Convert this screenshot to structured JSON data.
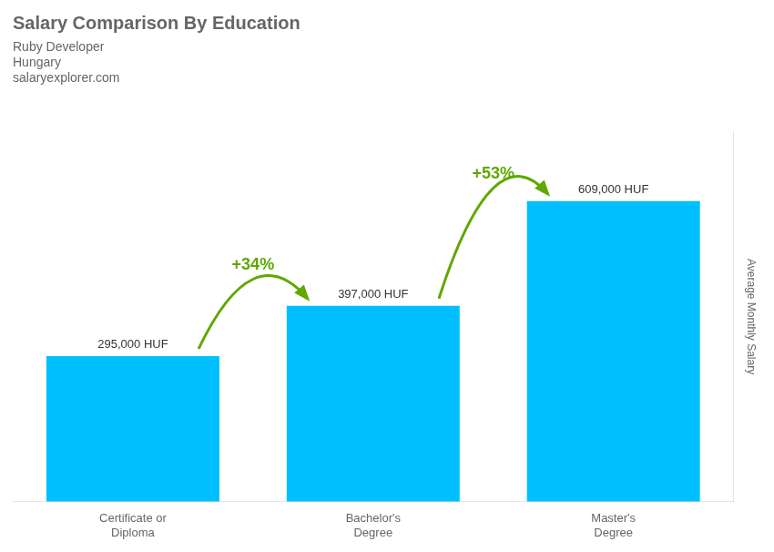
{
  "chart_data": {
    "type": "bar",
    "title": "Salary Comparison By Education",
    "subtitle": "Ruby Developer",
    "annotations": [
      "Hungary",
      "salaryexplorer.com",
      {
        "text": "+34%",
        "from": "Certificate or\nDiploma",
        "to": "Bachelor's\nDegree"
      },
      {
        "text": "+53%",
        "from": "Bachelor's\nDegree",
        "to": "Master's\nDegree"
      }
    ],
    "ylabel": "Average Monthly Salary",
    "categories": [
      "Certificate or\nDiploma",
      "Bachelor's\nDegree",
      "Master's\nDegree"
    ],
    "values": [
      295000,
      397000,
      609000
    ],
    "value_labels": [
      "295,000 HUF",
      "397,000 HUF",
      "609,000 HUF"
    ],
    "data_labels": true,
    "color": "#00BFFF",
    "ylim": [
      0,
      750000
    ],
    "tick_labels": "x",
    "grid": false
  }
}
